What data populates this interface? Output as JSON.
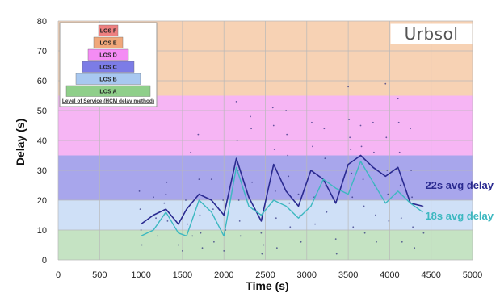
{
  "chart_data": {
    "type": "line",
    "xlabel": "Time (s)",
    "ylabel": "Delay (s)",
    "xlim": [
      0,
      5000
    ],
    "ylim": [
      0,
      80
    ],
    "x_ticks": [
      "0",
      "500",
      "1000",
      "1500",
      "2000",
      "2500",
      "3000",
      "3500",
      "4000",
      "4500",
      "5000"
    ],
    "y_ticks": [
      "0",
      "10",
      "20",
      "30",
      "40",
      "50",
      "60",
      "70",
      "80"
    ],
    "grid": true,
    "bands": [
      {
        "label": "LOS A",
        "from": 0,
        "to": 10,
        "color": "#c5e3c3"
      },
      {
        "label": "LOS B",
        "from": 10,
        "to": 20,
        "color": "#cfe0f7"
      },
      {
        "label": "LOS C",
        "from": 20,
        "to": 35,
        "color": "#a8a6ec"
      },
      {
        "label": "LOS D",
        "from": 35,
        "to": 55,
        "color": "#f6b5f4"
      },
      {
        "label": "LOS E",
        "from": 55,
        "to": 80,
        "color": "#f7d2b4"
      }
    ],
    "pyramid": [
      {
        "label": "LOS F",
        "color": "#ee8080"
      },
      {
        "label": "LOS E",
        "color": "#f0a77a"
      },
      {
        "label": "LOS D",
        "color": "#f48cf4"
      },
      {
        "label": "LOS C",
        "color": "#7c7ce6"
      },
      {
        "label": "LOS B",
        "color": "#a8c8f0"
      },
      {
        "label": "LOS A",
        "color": "#8fcf8a"
      }
    ],
    "legend_caption": "Level of Service (HCM delay method)",
    "brand": "Urbsol",
    "series": [
      {
        "name": "22s avg delay",
        "color": "#2a2a90",
        "x": [
          1000,
          1150,
          1300,
          1450,
          1550,
          1700,
          1850,
          2000,
          2150,
          2300,
          2450,
          2600,
          2750,
          2900,
          3050,
          3200,
          3350,
          3500,
          3650,
          3800,
          3950,
          4100,
          4250,
          4400
        ],
        "y": [
          12,
          15,
          17,
          12,
          17,
          22,
          20,
          15,
          34,
          21,
          13,
          32,
          23,
          18,
          30,
          27,
          19,
          32,
          35,
          31,
          28,
          31,
          19,
          18
        ]
      },
      {
        "name": "18s avg delay",
        "color": "#3cb8c0",
        "x": [
          1000,
          1150,
          1300,
          1450,
          1550,
          1700,
          1850,
          2000,
          2150,
          2300,
          2450,
          2600,
          2750,
          2900,
          3050,
          3200,
          3350,
          3500,
          3650,
          3800,
          3950,
          4100,
          4250,
          4400
        ],
        "y": [
          8,
          10,
          16,
          9,
          8,
          20,
          16,
          8,
          31,
          18,
          15,
          20,
          18,
          14,
          18,
          27,
          24,
          22,
          33,
          26,
          19,
          23,
          19,
          16
        ]
      }
    ],
    "scatter": {
      "color": "#2a2a7a",
      "points": [
        [
          980,
          23
        ],
        [
          990,
          17
        ],
        [
          1000,
          10
        ],
        [
          1010,
          5
        ],
        [
          1150,
          21
        ],
        [
          1180,
          14
        ],
        [
          1200,
          8
        ],
        [
          1280,
          19
        ],
        [
          1300,
          22
        ],
        [
          1310,
          26
        ],
        [
          1320,
          13
        ],
        [
          1450,
          5
        ],
        [
          1500,
          3
        ],
        [
          1540,
          20
        ],
        [
          1560,
          12
        ],
        [
          1600,
          36
        ],
        [
          1620,
          8
        ],
        [
          1690,
          42
        ],
        [
          1700,
          27
        ],
        [
          1710,
          15
        ],
        [
          1720,
          9
        ],
        [
          1740,
          4
        ],
        [
          1850,
          27
        ],
        [
          1870,
          17
        ],
        [
          1880,
          6
        ],
        [
          1990,
          20
        ],
        [
          2000,
          3
        ],
        [
          2020,
          10
        ],
        [
          2150,
          53
        ],
        [
          2160,
          40
        ],
        [
          2170,
          30
        ],
        [
          2180,
          20
        ],
        [
          2190,
          13
        ],
        [
          2200,
          8
        ],
        [
          2320,
          48
        ],
        [
          2330,
          44
        ],
        [
          2340,
          26
        ],
        [
          2350,
          17
        ],
        [
          2450,
          9
        ],
        [
          2460,
          2
        ],
        [
          2480,
          5
        ],
        [
          2590,
          51
        ],
        [
          2600,
          45
        ],
        [
          2610,
          37
        ],
        [
          2620,
          23
        ],
        [
          2630,
          14
        ],
        [
          2640,
          4
        ],
        [
          2750,
          50
        ],
        [
          2760,
          42
        ],
        [
          2770,
          35
        ],
        [
          2780,
          28
        ],
        [
          2790,
          19
        ],
        [
          2800,
          11
        ],
        [
          2900,
          22
        ],
        [
          2920,
          15
        ],
        [
          2930,
          6
        ],
        [
          3060,
          46
        ],
        [
          3070,
          38
        ],
        [
          3080,
          29
        ],
        [
          3090,
          21
        ],
        [
          3100,
          12
        ],
        [
          3210,
          44
        ],
        [
          3220,
          34
        ],
        [
          3230,
          25
        ],
        [
          3240,
          16
        ],
        [
          3350,
          7
        ],
        [
          3360,
          2
        ],
        [
          3500,
          58
        ],
        [
          3510,
          47
        ],
        [
          3520,
          41
        ],
        [
          3530,
          37
        ],
        [
          3540,
          29
        ],
        [
          3550,
          21
        ],
        [
          3560,
          11
        ],
        [
          3650,
          45
        ],
        [
          3660,
          38
        ],
        [
          3670,
          32
        ],
        [
          3680,
          27
        ],
        [
          3690,
          18
        ],
        [
          3700,
          9
        ],
        [
          3800,
          46
        ],
        [
          3810,
          36
        ],
        [
          3820,
          25
        ],
        [
          3830,
          15
        ],
        [
          3840,
          6
        ],
        [
          3950,
          59
        ],
        [
          3960,
          41
        ],
        [
          3970,
          30
        ],
        [
          3980,
          22
        ],
        [
          3990,
          13
        ],
        [
          4100,
          54
        ],
        [
          4110,
          46
        ],
        [
          4120,
          36
        ],
        [
          4130,
          25
        ],
        [
          4140,
          14
        ],
        [
          4150,
          6
        ],
        [
          4250,
          44
        ],
        [
          4260,
          30
        ],
        [
          4270,
          21
        ],
        [
          4280,
          11
        ],
        [
          4300,
          4
        ],
        [
          4400,
          18
        ],
        [
          4410,
          9
        ]
      ]
    }
  }
}
